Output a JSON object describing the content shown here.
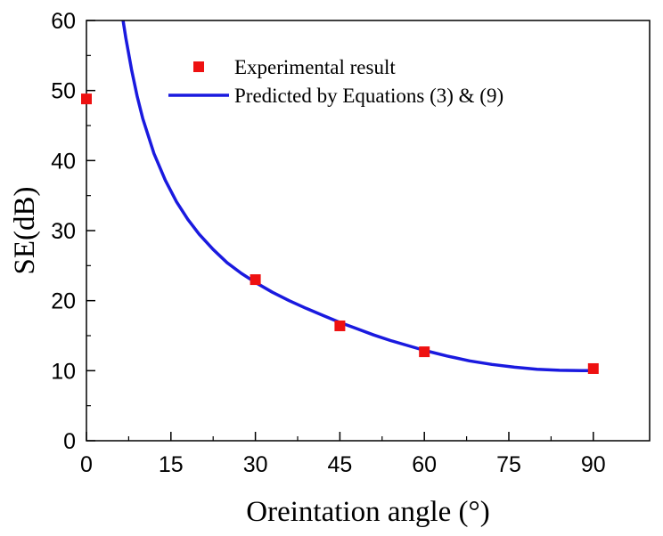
{
  "chart_data": {
    "type": "scatter",
    "title": "",
    "xlabel": "Oreintation angle (°)",
    "ylabel": "SE(dB)",
    "xlim": [
      0,
      100
    ],
    "ylim": [
      0,
      60
    ],
    "xticks": [
      0,
      15,
      30,
      45,
      60,
      75,
      90
    ],
    "yticks": [
      0,
      10,
      20,
      30,
      40,
      50,
      60
    ],
    "xtick_labels": [
      "0",
      "15",
      "30",
      "45",
      "60",
      "75",
      "90"
    ],
    "ytick_labels": [
      "0",
      "10",
      "20",
      "30",
      "40",
      "50",
      "60"
    ],
    "grid": false,
    "legend_position": "top-right",
    "series": [
      {
        "name": "Experimental result",
        "kind": "markers",
        "marker": "square",
        "color": "#ee1111",
        "x": [
          0,
          30,
          45,
          60,
          90
        ],
        "y": [
          48.8,
          23.0,
          16.4,
          12.7,
          10.3
        ]
      },
      {
        "name": "Predicted by Equations (3) & (9)",
        "kind": "line",
        "color": "#1a1adf",
        "x": [
          6.5,
          7,
          8,
          9,
          10,
          12,
          14,
          16,
          18,
          20,
          22.5,
          25,
          27.5,
          30,
          33,
          36,
          39,
          42,
          45,
          48,
          51,
          54,
          57,
          60,
          64,
          68,
          72,
          76,
          80,
          84,
          88,
          90
        ],
        "y": [
          60.0,
          57.5,
          53.0,
          49.2,
          46.0,
          41.0,
          37.2,
          34.1,
          31.6,
          29.5,
          27.3,
          25.4,
          23.9,
          22.6,
          21.2,
          20.0,
          18.9,
          17.9,
          16.9,
          16.0,
          15.1,
          14.3,
          13.6,
          12.9,
          12.1,
          11.4,
          10.9,
          10.5,
          10.2,
          10.05,
          10.0,
          10.0
        ]
      }
    ]
  }
}
